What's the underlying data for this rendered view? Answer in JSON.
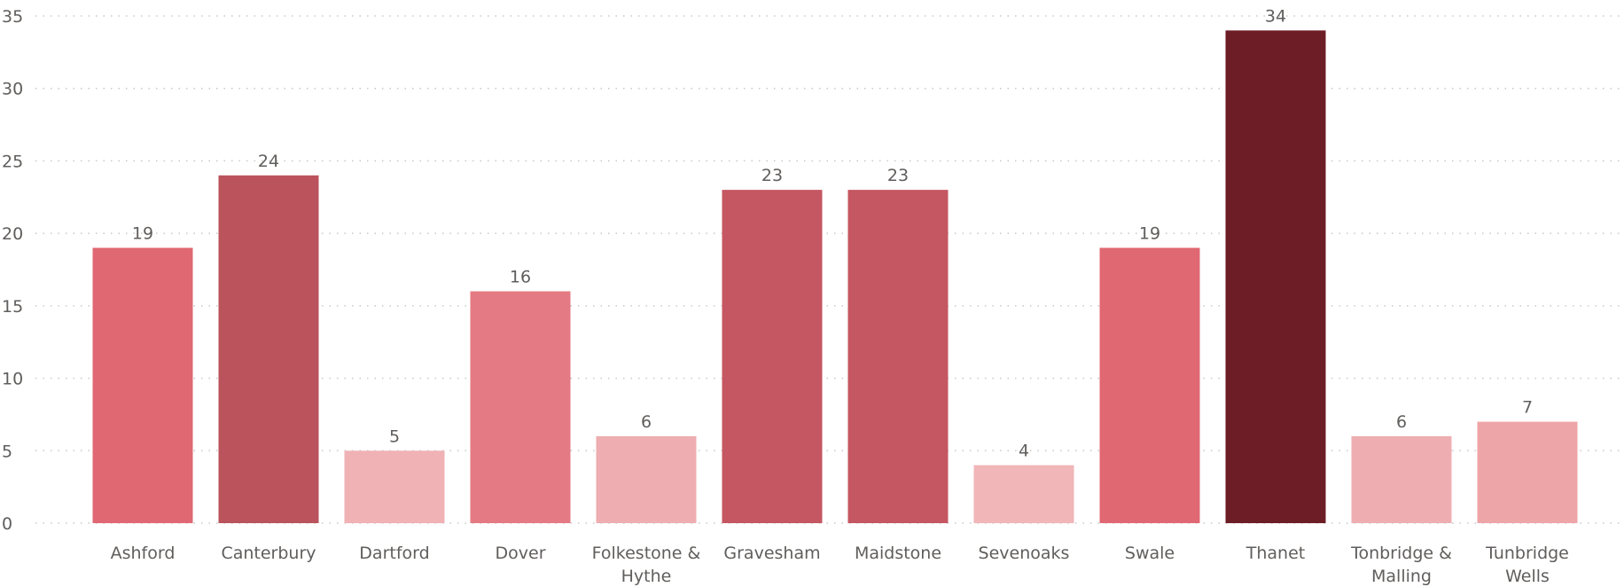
{
  "chart_data": {
    "type": "bar",
    "title": "",
    "xlabel": "",
    "ylabel": "",
    "categories": [
      "Ashford",
      "Canterbury",
      "Dartford",
      "Dover",
      "Folkestone & Hythe",
      "Gravesham",
      "Maidstone",
      "Sevenoaks",
      "Swale",
      "Thanet",
      "Tonbridge & Malling",
      "Tunbridge Wells"
    ],
    "values": [
      19,
      24,
      5,
      16,
      6,
      23,
      23,
      4,
      19,
      34,
      6,
      7
    ],
    "bar_colors": [
      "#e06873",
      "#ba535b",
      "#f0b2b5",
      "#e47a83",
      "#eeaeb1",
      "#c55762",
      "#c55762",
      "#f1b6b8",
      "#e06873",
      "#6d1d26",
      "#eeaeb1",
      "#eea5a8"
    ],
    "ylim": [
      0,
      35
    ],
    "yticks": [
      0,
      5,
      10,
      15,
      20,
      25,
      30,
      35
    ],
    "grid": true,
    "data_labels": true,
    "legend": "none",
    "colors": {
      "tick_text": "#605e5c",
      "grid": "#c8c8c8",
      "background": "#ffffff"
    }
  }
}
